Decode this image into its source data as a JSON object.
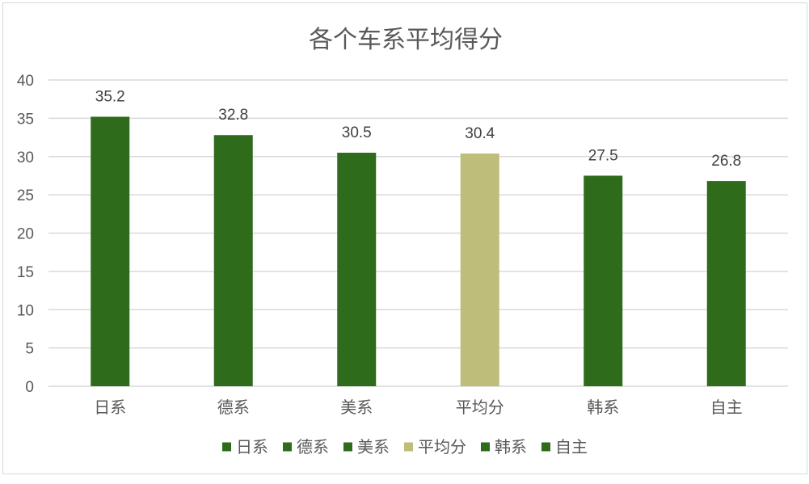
{
  "chart_data": {
    "type": "bar",
    "title": "各个车系平均得分",
    "xlabel": "",
    "ylabel": "",
    "categories": [
      "日系",
      "德系",
      "美系",
      "平均分",
      "韩系",
      "自主"
    ],
    "values": [
      35.2,
      32.8,
      30.5,
      30.4,
      27.5,
      26.8
    ],
    "value_labels": [
      "35.2",
      "32.8",
      "30.5",
      "30.4",
      "27.5",
      "26.8"
    ],
    "ylim": [
      0,
      40
    ],
    "yticks": [
      0,
      5,
      10,
      15,
      20,
      25,
      30,
      35,
      40
    ],
    "ytick_labels": [
      "0",
      "5",
      "10",
      "15",
      "20",
      "25",
      "30",
      "35",
      "40"
    ],
    "bar_colors": [
      "#2e6b1b",
      "#2e6b1b",
      "#2e6b1b",
      "#bfbd7a",
      "#2e6b1b",
      "#2e6b1b"
    ],
    "grid": true,
    "legend": {
      "placement": "bottom",
      "entries": [
        "日系",
        "德系",
        "美系",
        "平均分",
        "韩系",
        "自主"
      ]
    }
  },
  "colors": {
    "primary_bar": "#2e6b1b",
    "average_bar": "#bfbd7a",
    "gridline": "#d9d9d9",
    "text": "#595959"
  }
}
